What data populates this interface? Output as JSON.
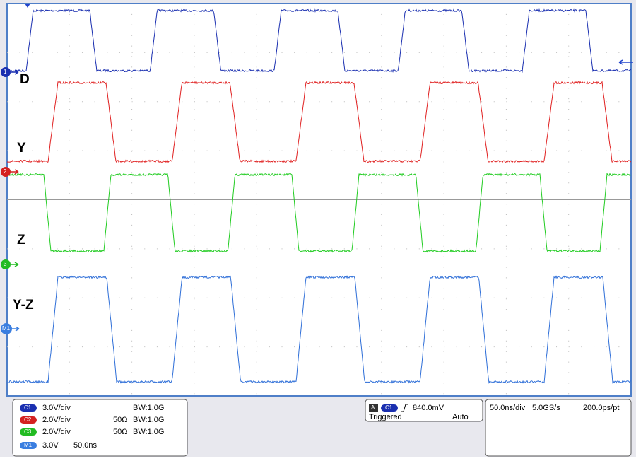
{
  "trace_labels": [
    "D",
    "Y",
    "Z",
    "Y-Z"
  ],
  "markers": [
    "1",
    "2",
    "3",
    "M1"
  ],
  "channels": [
    {
      "id": "C1",
      "scale": "3.0V/div",
      "bandwidth": "BW:1.0G"
    },
    {
      "id": "C2",
      "scale": "2.0V/div",
      "termination": "50Ω",
      "bandwidth": "BW:1.0G"
    },
    {
      "id": "C3",
      "scale": "2.0V/div",
      "termination": "50Ω",
      "bandwidth": "BW:1.0G"
    }
  ],
  "math": {
    "id": "M1",
    "scale": "3.0V",
    "timebase": "50.0ns"
  },
  "trigger": {
    "mode_icon": "A",
    "source": "C1",
    "level": "840.0mV",
    "state": "Triggered",
    "mode": "Auto"
  },
  "timebase": {
    "scale": "50.0ns/div",
    "sample_rate": "5.0GS/s",
    "resolution": "200.0ps/pt"
  }
}
